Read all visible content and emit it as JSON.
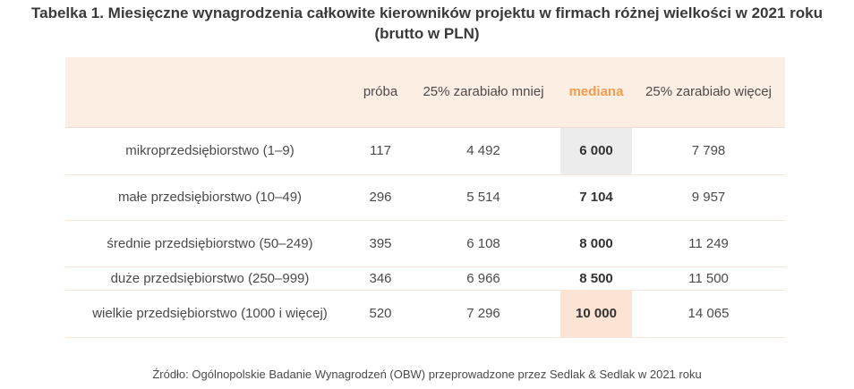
{
  "title": {
    "line1": "Tabelka 1. Miesięczne wynagrodzenia całkowite kierowników projektu w firmach różnej wielkości w 2021 roku",
    "line2": "(brutto w PLN)"
  },
  "table": {
    "headers": [
      "",
      "próba",
      "25% zarabiało mniej",
      "mediana",
      "25% zarabiało więcej"
    ],
    "rows": [
      [
        "mikroprzedsiębiorstwo (1–9)",
        "117",
        "4 492",
        "6 000",
        "7 798"
      ],
      [
        "małe przedsiębiorstwo (10–49)",
        "296",
        "5 514",
        "7 104",
        "9 957"
      ],
      [
        "średnie przedsiębiorstwo (50–249)",
        "395",
        "6 108",
        "8 000",
        "11 249"
      ],
      [
        "duże przedsiębiorstwo (250–999)",
        "346",
        "6 966",
        "8 500",
        "11 500"
      ],
      [
        "wielkie przedsiębiorstwo (1000 i więcej)",
        "520",
        "7 296",
        "10 000",
        "14 065"
      ]
    ]
  },
  "colors": {
    "header_bg": "#fdeee4",
    "median_header": "#f39c4d",
    "median_min_highlight": "#ececec",
    "median_max_highlight": "#fde3d3"
  },
  "source": "Źródło: Ogólnopolskie Badanie Wynagrodzeń (OBW) przeprowadzone przez Sedlak & Sedlak w 2021 roku"
}
